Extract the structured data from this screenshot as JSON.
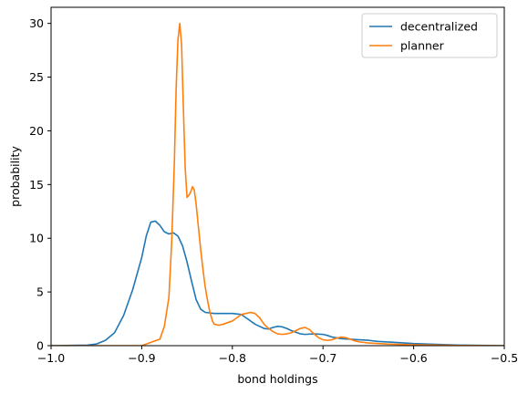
{
  "chart_data": {
    "type": "line",
    "xlabel": "bond holdings",
    "ylabel": "probability",
    "xlim": [
      -1.0,
      -0.5
    ],
    "ylim": [
      0,
      31.5
    ],
    "xticks": [
      -1.0,
      -0.9,
      -0.8,
      -0.7,
      -0.6,
      -0.5
    ],
    "xtick_labels": [
      "−1.0",
      "−0.9",
      "−0.8",
      "−0.7",
      "−0.6",
      "−0.5"
    ],
    "yticks": [
      0,
      5,
      10,
      15,
      20,
      25,
      30
    ],
    "ytick_labels": [
      "0",
      "5",
      "10",
      "15",
      "20",
      "25",
      "30"
    ],
    "grid": false,
    "legend_position": "top-right",
    "series": [
      {
        "name": "decentralized",
        "color": "#1f77b4",
        "x": [
          -1.0,
          -0.96,
          -0.95,
          -0.94,
          -0.93,
          -0.92,
          -0.91,
          -0.9,
          -0.895,
          -0.89,
          -0.885,
          -0.88,
          -0.875,
          -0.87,
          -0.865,
          -0.86,
          -0.855,
          -0.85,
          -0.845,
          -0.84,
          -0.835,
          -0.83,
          -0.82,
          -0.81,
          -0.8,
          -0.79,
          -0.785,
          -0.78,
          -0.775,
          -0.77,
          -0.765,
          -0.76,
          -0.755,
          -0.75,
          -0.745,
          -0.74,
          -0.735,
          -0.73,
          -0.725,
          -0.72,
          -0.71,
          -0.7,
          -0.695,
          -0.69,
          -0.68,
          -0.67,
          -0.66,
          -0.65,
          -0.64,
          -0.62,
          -0.6,
          -0.55,
          -0.5
        ],
        "y": [
          0.0,
          0.05,
          0.15,
          0.5,
          1.2,
          2.8,
          5.2,
          8.2,
          10.2,
          11.5,
          11.6,
          11.2,
          10.6,
          10.4,
          10.5,
          10.2,
          9.3,
          7.8,
          6.0,
          4.3,
          3.4,
          3.1,
          3.0,
          3.0,
          3.0,
          2.9,
          2.6,
          2.3,
          2.0,
          1.8,
          1.6,
          1.55,
          1.7,
          1.8,
          1.75,
          1.6,
          1.4,
          1.25,
          1.1,
          1.05,
          1.1,
          1.05,
          0.95,
          0.8,
          0.65,
          0.6,
          0.55,
          0.5,
          0.4,
          0.3,
          0.2,
          0.05,
          0.0
        ]
      },
      {
        "name": "planner",
        "color": "#ff7f0e",
        "x": [
          -1.0,
          -0.9,
          -0.88,
          -0.875,
          -0.87,
          -0.867,
          -0.864,
          -0.862,
          -0.86,
          -0.858,
          -0.856,
          -0.854,
          -0.852,
          -0.85,
          -0.848,
          -0.846,
          -0.844,
          -0.842,
          -0.84,
          -0.838,
          -0.835,
          -0.832,
          -0.83,
          -0.828,
          -0.825,
          -0.822,
          -0.82,
          -0.815,
          -0.81,
          -0.8,
          -0.795,
          -0.79,
          -0.785,
          -0.78,
          -0.775,
          -0.77,
          -0.765,
          -0.76,
          -0.755,
          -0.75,
          -0.745,
          -0.74,
          -0.735,
          -0.73,
          -0.725,
          -0.72,
          -0.715,
          -0.71,
          -0.705,
          -0.7,
          -0.695,
          -0.69,
          -0.685,
          -0.68,
          -0.675,
          -0.67,
          -0.665,
          -0.66,
          -0.65,
          -0.63,
          -0.6,
          -0.55,
          -0.5
        ],
        "y": [
          0.0,
          0.0,
          0.6,
          1.8,
          4.5,
          9.5,
          17.0,
          24.0,
          28.5,
          30.0,
          28.0,
          22.0,
          16.5,
          13.8,
          14.0,
          14.3,
          14.8,
          14.5,
          13.2,
          11.5,
          9.0,
          6.8,
          5.5,
          4.5,
          3.2,
          2.3,
          2.0,
          1.9,
          2.0,
          2.3,
          2.6,
          2.9,
          3.0,
          3.1,
          3.0,
          2.6,
          2.0,
          1.6,
          1.3,
          1.1,
          1.05,
          1.1,
          1.2,
          1.4,
          1.6,
          1.7,
          1.5,
          1.1,
          0.75,
          0.55,
          0.5,
          0.55,
          0.7,
          0.8,
          0.75,
          0.6,
          0.45,
          0.35,
          0.25,
          0.15,
          0.08,
          0.02,
          0.0
        ]
      }
    ]
  }
}
